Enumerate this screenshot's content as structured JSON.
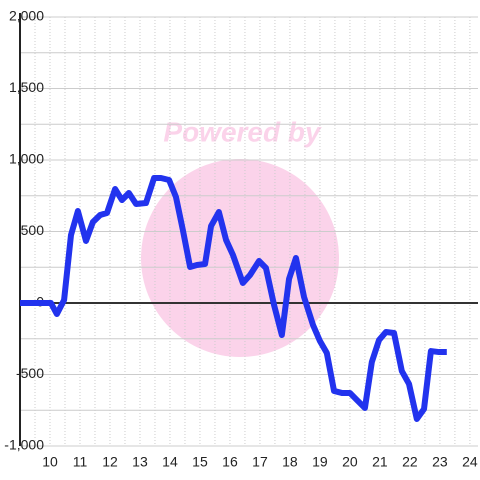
{
  "chart_data": {
    "type": "line",
    "watermark": "Powered by",
    "x": [
      9.0,
      10.03,
      10.23,
      10.47,
      10.7,
      10.93,
      11.2,
      11.43,
      11.67,
      11.9,
      12.17,
      12.4,
      12.63,
      12.87,
      13.2,
      13.47,
      13.7,
      13.97,
      14.2,
      14.43,
      14.67,
      14.9,
      15.17,
      15.37,
      15.63,
      15.87,
      16.1,
      16.43,
      16.67,
      16.97,
      17.2,
      17.47,
      17.73,
      17.97,
      18.2,
      18.47,
      18.77,
      19.0,
      19.23,
      19.47,
      19.73,
      20.0,
      20.23,
      20.5,
      20.73,
      20.97,
      21.2,
      21.47,
      21.73,
      21.97,
      22.23,
      22.47,
      22.7,
      22.97,
      23.23
    ],
    "series": [
      {
        "color": "#2233ee",
        "values": [
          0,
          0,
          -77,
          21,
          475,
          643,
          434,
          566,
          615,
          629,
          797,
          720,
          769,
          692,
          699,
          874,
          874,
          860,
          741,
          510,
          252,
          266,
          273,
          538,
          636,
          441,
          336,
          140,
          196,
          294,
          245,
          -14,
          -224,
          168,
          315,
          42,
          -154,
          -266,
          -350,
          -615,
          -629,
          -629,
          -678,
          -734,
          -413,
          -259,
          -203,
          -210,
          -476,
          -566,
          -811,
          -741,
          -336,
          -343,
          -343
        ]
      }
    ],
    "xlim": [
      9,
      24.27
    ],
    "xticks": [
      10,
      11,
      12,
      13,
      14,
      15,
      16,
      17,
      18,
      19,
      20,
      21,
      22,
      23,
      24
    ],
    "xgrid_minor": [
      9.5,
      10.5,
      11.5,
      12.5,
      13.5,
      14.5,
      15.5,
      16.5,
      17.5,
      18.5,
      19.5,
      20.5,
      21.5,
      22.5,
      23.5
    ],
    "ylim": [
      -1000,
      2000
    ],
    "yticks": [
      {
        "value": -1000,
        "label": "-1,000"
      },
      -500,
      0,
      500,
      {
        "value": 1000,
        "label": "1,000"
      },
      {
        "value": 1500,
        "label": "1,500"
      },
      {
        "value": 2000,
        "label": "2,000"
      }
    ],
    "ygrid_minor": [
      -750,
      -250,
      250,
      750,
      1250,
      1750
    ],
    "grid": true
  }
}
